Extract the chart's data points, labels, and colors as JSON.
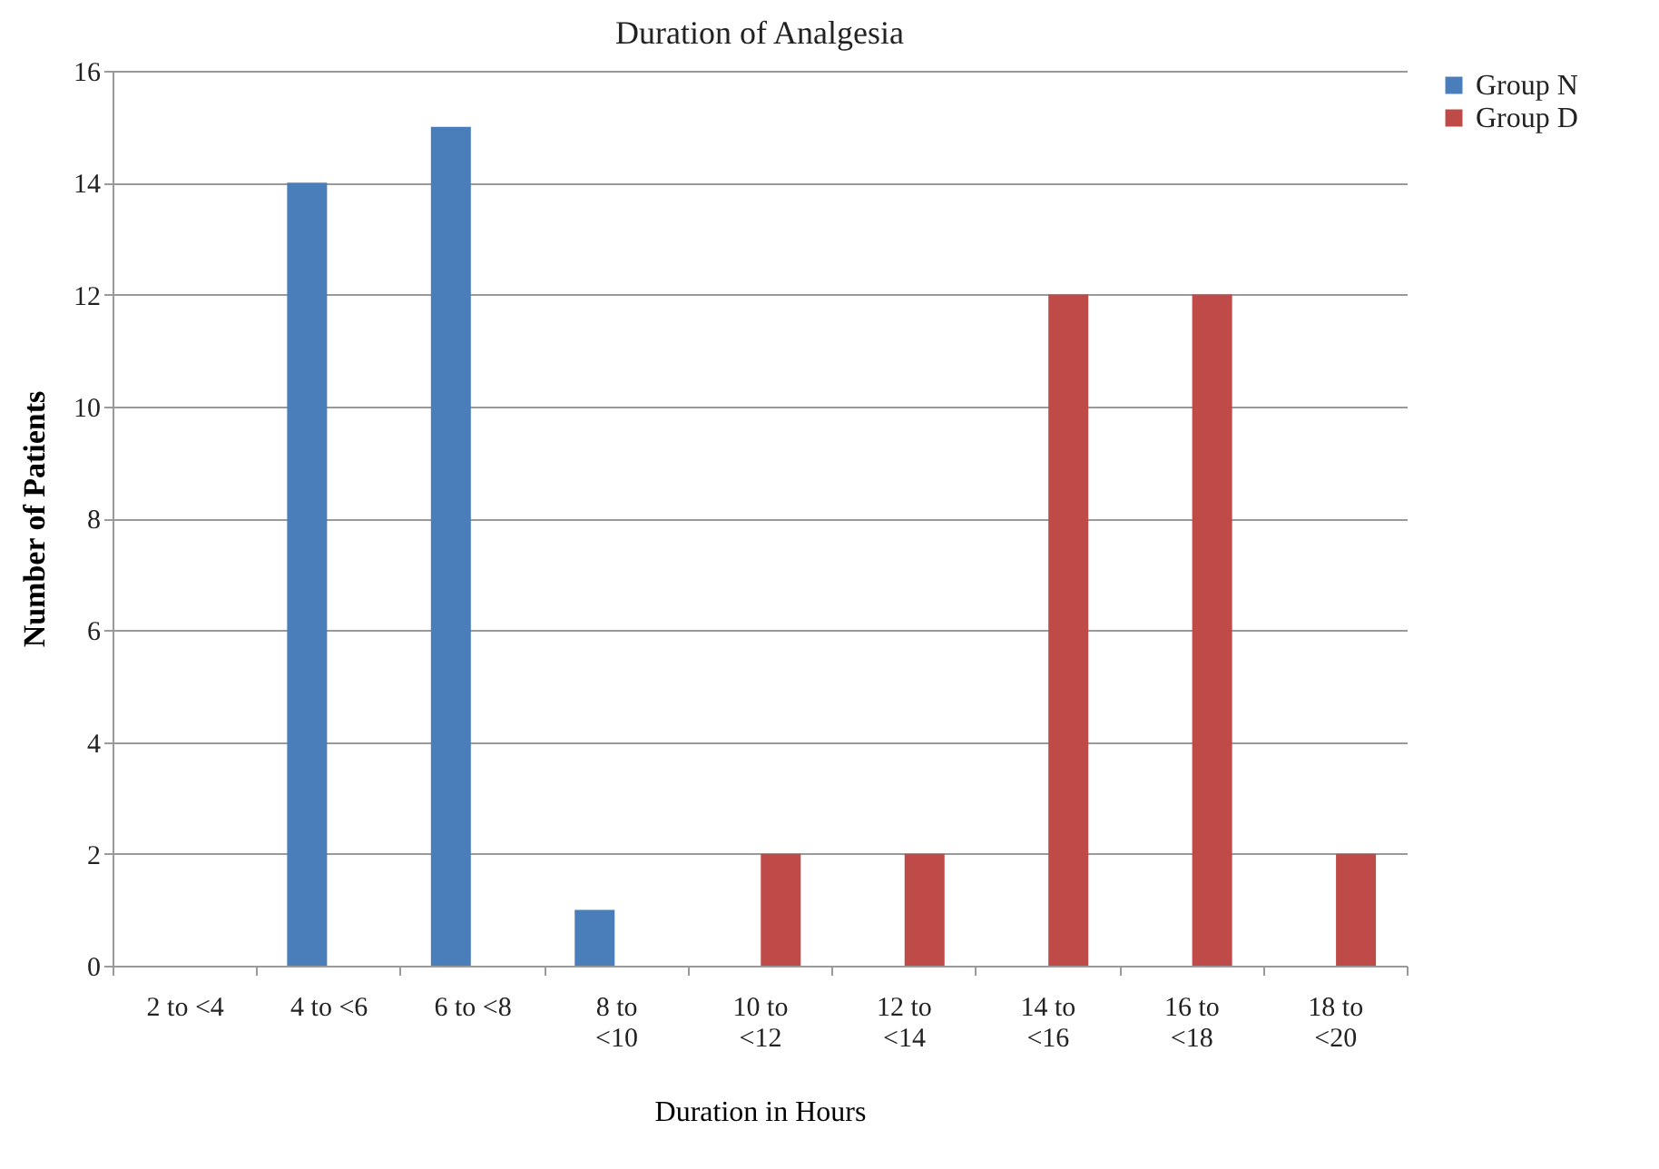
{
  "chart_data": {
    "type": "bar",
    "title": "Duration of Analgesia",
    "xlabel": "Duration in Hours",
    "ylabel": "Number of Patients",
    "categories": [
      "2 to <4",
      "4 to <6",
      "6 to <8",
      "8 to <10",
      "10 to <12",
      "12 to <14",
      "14 to <16",
      "16 to <18",
      "18 to <20"
    ],
    "series": [
      {
        "name": "Group N",
        "color": "#4a7ebb",
        "values": [
          0,
          14,
          15,
          1,
          0,
          0,
          0,
          0,
          0
        ]
      },
      {
        "name": "Group D",
        "color": "#be4b48",
        "values": [
          0,
          0,
          0,
          0,
          2,
          2,
          12,
          12,
          2
        ]
      }
    ],
    "ylim": [
      0,
      16
    ],
    "yticks": [
      0,
      2,
      4,
      6,
      8,
      10,
      12,
      14,
      16
    ],
    "grid": "y",
    "legend": "right"
  }
}
